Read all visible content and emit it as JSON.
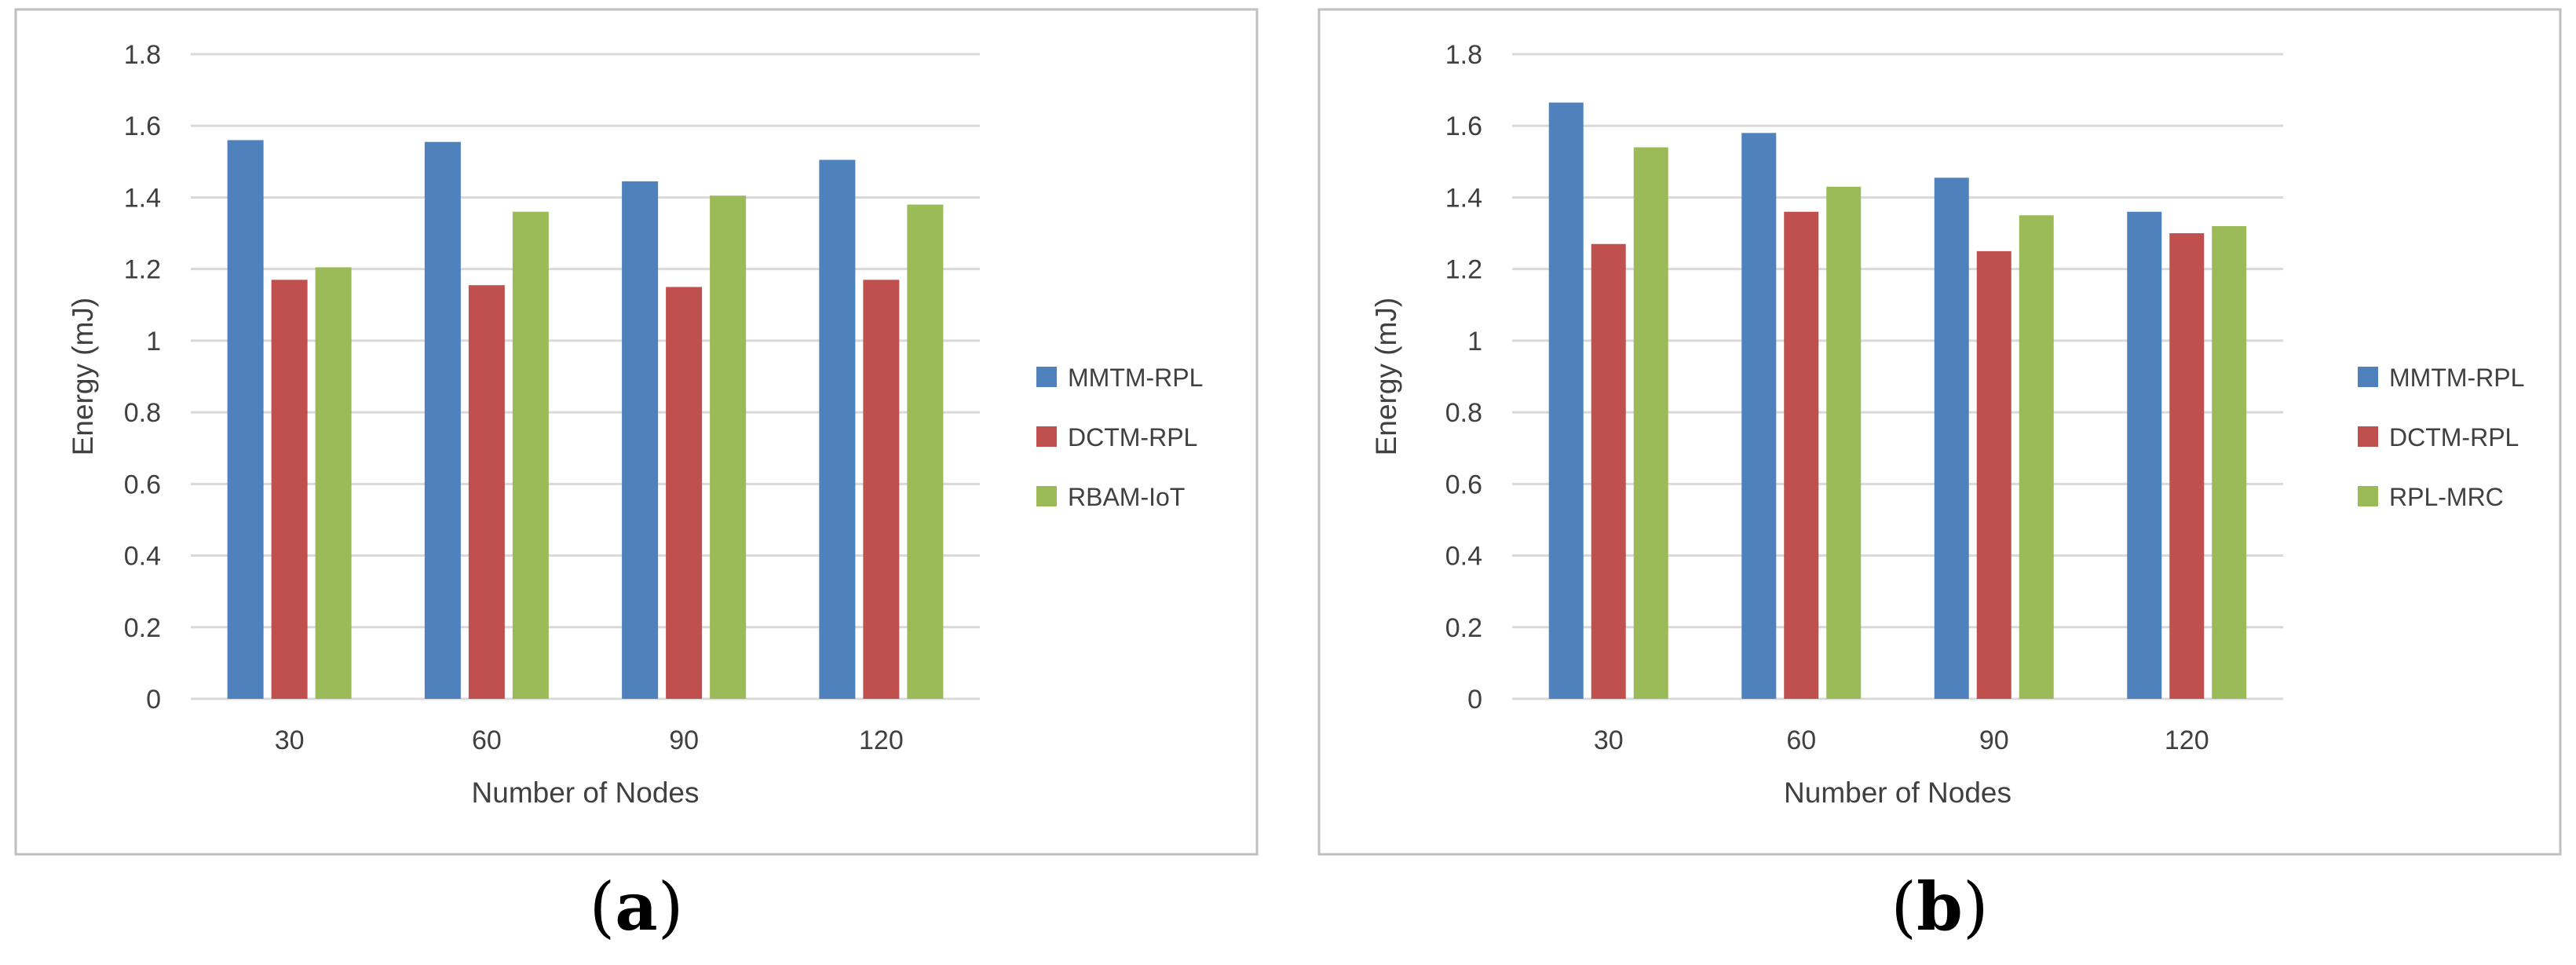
{
  "chart_data": [
    {
      "type": "bar",
      "panel_label": "a",
      "title": "",
      "xlabel": "Number  of Nodes",
      "ylabel": "Energy (mJ)",
      "ylim": [
        0,
        1.8
      ],
      "yticks": [
        "0",
        "0.2",
        "0.4",
        "0.6",
        "0.8",
        "1",
        "1.2",
        "1.4",
        "1.6",
        "1.8"
      ],
      "grid": true,
      "legend_position": "right",
      "categories": [
        "30",
        "60",
        "90",
        "120"
      ],
      "series": [
        {
          "name": "MMTM-RPL",
          "color": "#4F81BD",
          "values": [
            1.56,
            1.555,
            1.445,
            1.505
          ]
        },
        {
          "name": "DCTM-RPL",
          "color": "#C0504D",
          "values": [
            1.17,
            1.155,
            1.15,
            1.17
          ]
        },
        {
          "name": "RBAM-IoT",
          "color": "#9BBB59",
          "values": [
            1.205,
            1.36,
            1.405,
            1.38
          ]
        }
      ]
    },
    {
      "type": "bar",
      "panel_label": "b",
      "title": "",
      "xlabel": "Number  of Nodes",
      "ylabel": "Energy (mJ)",
      "ylim": [
        0,
        1.8
      ],
      "yticks": [
        "0",
        "0.2",
        "0.4",
        "0.6",
        "0.8",
        "1",
        "1.2",
        "1.4",
        "1.6",
        "1.8"
      ],
      "grid": true,
      "legend_position": "right",
      "categories": [
        "30",
        "60",
        "90",
        "120"
      ],
      "series": [
        {
          "name": "MMTM-RPL",
          "color": "#4F81BD",
          "values": [
            1.665,
            1.58,
            1.455,
            1.36
          ]
        },
        {
          "name": "DCTM-RPL",
          "color": "#C0504D",
          "values": [
            1.27,
            1.36,
            1.25,
            1.3
          ]
        },
        {
          "name": "RPL-MRC",
          "color": "#9BBB59",
          "values": [
            1.54,
            1.43,
            1.35,
            1.32
          ]
        }
      ]
    }
  ],
  "frame_color": "#BFBFBF",
  "grid_color": "#D9D9D9"
}
